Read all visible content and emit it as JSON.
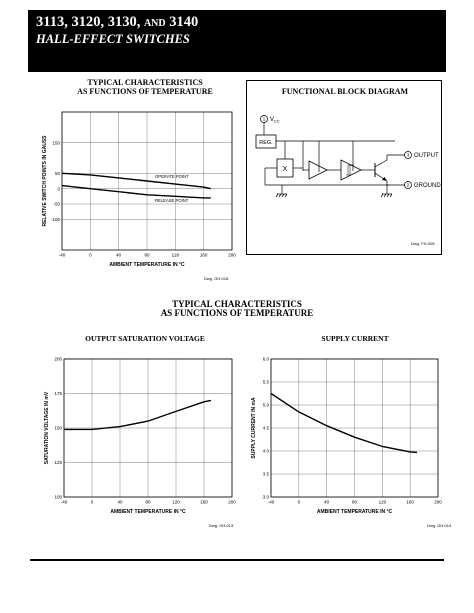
{
  "header": {
    "title_main": "3113, 3120, 3130, ",
    "title_and": "AND",
    "title_last": " 3140",
    "subtitle": "HALL-EFFECT SWITCHES"
  },
  "top_left": {
    "heading_line1": "TYPICAL CHARACTERISTICS",
    "heading_line2": "AS FUNCTIONS OF TEMPERATURE",
    "dwg": "Dwg. GH-018"
  },
  "block_diagram": {
    "heading": "FUNCTIONAL BLOCK DIAGRAM",
    "pin1": "1",
    "vcc_label": "V",
    "vcc_sub": "CC",
    "reg_label": "REG.",
    "hall_label": "X",
    "pin3": "3",
    "output_label": "OUTPUT",
    "pin2": "2",
    "ground_label": "GROUND",
    "dwg": "Dwg. FH-005"
  },
  "mid_heading": {
    "line1": "TYPICAL CHARACTERISTICS",
    "line2": "AS FUNCTIONS OF TEMPERATURE"
  },
  "bottom_left": {
    "heading": "OUTPUT SATURATION VOLTAGE",
    "dwg": "Dwg. GH-013"
  },
  "bottom_right": {
    "heading": "SUPPLY CURRENT",
    "dwg": "Dwg. GH-014"
  },
  "chart_data": [
    {
      "type": "line",
      "title": "TYPICAL CHARACTERISTICS AS FUNCTIONS OF TEMPERATURE",
      "xlabel": "AMBIENT TEMPERATURE IN °C",
      "ylabel": "RELATIVE SWITCH POINTS IN GAUSS",
      "xlim": [
        -40,
        200
      ],
      "ylim": [
        -200,
        250
      ],
      "xticks": [
        "-40",
        "0",
        "40",
        "80",
        "120",
        "160",
        "200"
      ],
      "yticks": [
        "150",
        "50",
        "0",
        "-50",
        "-100"
      ],
      "ytick_values": [
        150,
        50,
        0,
        -50,
        -100
      ],
      "grid": true,
      "series": [
        {
          "name": "OPERATE POINT",
          "x": [
            -40,
            0,
            40,
            80,
            120,
            160,
            170
          ],
          "y": [
            50,
            45,
            35,
            25,
            15,
            5,
            0
          ]
        },
        {
          "name": "RELEASE POINT",
          "x": [
            -40,
            0,
            40,
            80,
            120,
            160,
            170
          ],
          "y": [
            10,
            0,
            -10,
            -20,
            -25,
            -30,
            -30
          ]
        }
      ]
    },
    {
      "type": "line",
      "title": "OUTPUT SATURATION VOLTAGE",
      "xlabel": "AMBIENT TEMPERATURE IN °C",
      "ylabel": "SATURATION VOLTAGE IN mV",
      "xlim": [
        -40,
        200
      ],
      "ylim": [
        100,
        200
      ],
      "xticks": [
        "-40",
        "0",
        "40",
        "80",
        "120",
        "160",
        "200"
      ],
      "yticks": [
        "200",
        "175",
        "150",
        "125",
        "100"
      ],
      "ytick_values": [
        200,
        175,
        150,
        125,
        100
      ],
      "grid": true,
      "series": [
        {
          "name": "",
          "x": [
            -40,
            0,
            40,
            80,
            120,
            160,
            170
          ],
          "y": [
            149,
            149,
            151,
            155,
            162,
            169,
            170
          ]
        }
      ]
    },
    {
      "type": "line",
      "title": "SUPPLY CURRENT",
      "xlabel": "AMBIENT TEMPERATURE IN °C",
      "ylabel": "SUPPLY CURRENT IN mA",
      "xlim": [
        -40,
        200
      ],
      "ylim": [
        3.0,
        6.0
      ],
      "xticks": [
        "-40",
        "0",
        "40",
        "80",
        "120",
        "160",
        "200"
      ],
      "yticks": [
        "6.0",
        "5.5",
        "5.0",
        "4.5",
        "4.0",
        "3.5",
        "3.0"
      ],
      "ytick_values": [
        6.0,
        5.5,
        5.0,
        4.5,
        4.0,
        3.5,
        3.0
      ],
      "grid": true,
      "series": [
        {
          "name": "",
          "x": [
            -40,
            0,
            40,
            80,
            120,
            160,
            170
          ],
          "y": [
            5.25,
            4.85,
            4.55,
            4.3,
            4.1,
            3.98,
            3.97
          ]
        }
      ]
    }
  ]
}
